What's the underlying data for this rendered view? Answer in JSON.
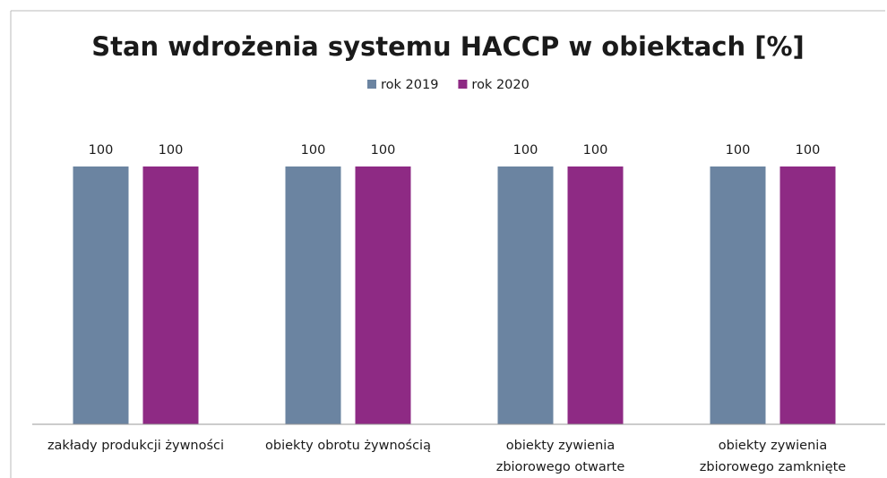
{
  "chart_data": {
    "type": "bar",
    "title": "Stan wdrożenia systemu HACCP w obiektach [%]",
    "categories": [
      "zakłady produkcji żywności",
      "obiekty obrotu żywnością",
      "obiekty zywienia zbiorowego otwarte",
      "obiekty zywienia zbiorowego zamknięte"
    ],
    "series": [
      {
        "name": "rok 2019",
        "color": "#6b84a1",
        "values": [
          100,
          100,
          100,
          100
        ]
      },
      {
        "name": "rok 2020",
        "color": "#8e2a84",
        "values": [
          100,
          100,
          100,
          100
        ]
      }
    ],
    "ylim": [
      0,
      100
    ],
    "legend": "top"
  }
}
